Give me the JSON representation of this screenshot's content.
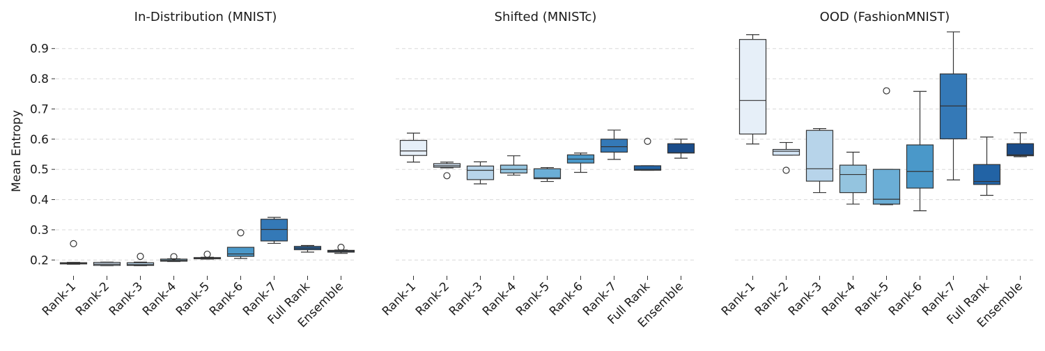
{
  "figure": {
    "ylabel": "Mean Entropy",
    "categories": [
      "Rank-1",
      "Rank-2",
      "Rank-3",
      "Rank-4",
      "Rank-5",
      "Rank-6",
      "Rank-7",
      "Full Rank",
      "Ensemble"
    ],
    "palette": [
      "#e6eff8",
      "#d2e3f3",
      "#b7d4ea",
      "#94c4df",
      "#6baed6",
      "#4a98c9",
      "#3479b7",
      "#2263a5",
      "#1a4c8a"
    ]
  },
  "chart_data": [
    {
      "type": "box",
      "title": "In-Distribution (MNIST)",
      "xlabel": "",
      "ylabel": "Mean Entropy",
      "ylim": [
        0.15,
        0.95
      ],
      "yticks": [
        0.2,
        0.3,
        0.4,
        0.5,
        0.6,
        0.7,
        0.8,
        0.9
      ],
      "grid": true,
      "categories": [
        "Rank-1",
        "Rank-2",
        "Rank-3",
        "Rank-4",
        "Rank-5",
        "Rank-6",
        "Rank-7",
        "Full Rank",
        "Ensemble"
      ],
      "boxes": [
        {
          "whislo": 0.186,
          "q1": 0.187,
          "med": 0.189,
          "q3": 0.191,
          "whishi": 0.192,
          "fliers": [
            0.254
          ]
        },
        {
          "whislo": 0.181,
          "q1": 0.182,
          "med": 0.186,
          "q3": 0.192,
          "whishi": 0.193,
          "fliers": []
        },
        {
          "whislo": 0.181,
          "q1": 0.182,
          "med": 0.185,
          "q3": 0.191,
          "whishi": 0.193,
          "fliers": [
            0.212
          ]
        },
        {
          "whislo": 0.195,
          "q1": 0.196,
          "med": 0.199,
          "q3": 0.203,
          "whishi": 0.204,
          "fliers": [
            0.211
          ]
        },
        {
          "whislo": 0.203,
          "q1": 0.204,
          "med": 0.206,
          "q3": 0.208,
          "whishi": 0.209,
          "fliers": [
            0.219
          ]
        },
        {
          "whislo": 0.205,
          "q1": 0.212,
          "med": 0.22,
          "q3": 0.242,
          "whishi": 0.242,
          "fliers": [
            0.29
          ]
        },
        {
          "whislo": 0.255,
          "q1": 0.263,
          "med": 0.301,
          "q3": 0.335,
          "whishi": 0.341,
          "fliers": []
        },
        {
          "whislo": 0.226,
          "q1": 0.234,
          "med": 0.239,
          "q3": 0.245,
          "whishi": 0.248,
          "fliers": []
        },
        {
          "whislo": 0.222,
          "q1": 0.226,
          "med": 0.229,
          "q3": 0.232,
          "whishi": 0.233,
          "fliers": [
            0.242
          ]
        }
      ]
    },
    {
      "type": "box",
      "title": "Shifted (MNISTc)",
      "xlabel": "",
      "ylabel": "",
      "ylim": [
        0.15,
        0.95
      ],
      "yticks": [
        0.2,
        0.3,
        0.4,
        0.5,
        0.6,
        0.7,
        0.8,
        0.9
      ],
      "grid": true,
      "categories": [
        "Rank-1",
        "Rank-2",
        "Rank-3",
        "Rank-4",
        "Rank-5",
        "Rank-6",
        "Rank-7",
        "Full Rank",
        "Ensemble"
      ],
      "boxes": [
        {
          "whislo": 0.524,
          "q1": 0.546,
          "med": 0.561,
          "q3": 0.596,
          "whishi": 0.62,
          "fliers": []
        },
        {
          "whislo": 0.505,
          "q1": 0.507,
          "med": 0.512,
          "q3": 0.519,
          "whishi": 0.524,
          "fliers": [
            0.479
          ]
        },
        {
          "whislo": 0.452,
          "q1": 0.466,
          "med": 0.497,
          "q3": 0.511,
          "whishi": 0.525,
          "fliers": []
        },
        {
          "whislo": 0.481,
          "q1": 0.488,
          "med": 0.5,
          "q3": 0.514,
          "whishi": 0.545,
          "fliers": []
        },
        {
          "whislo": 0.46,
          "q1": 0.469,
          "med": 0.472,
          "q3": 0.502,
          "whishi": 0.506,
          "fliers": []
        },
        {
          "whislo": 0.49,
          "q1": 0.521,
          "med": 0.534,
          "q3": 0.548,
          "whishi": 0.554,
          "fliers": []
        },
        {
          "whislo": 0.533,
          "q1": 0.557,
          "med": 0.575,
          "q3": 0.6,
          "whishi": 0.63,
          "fliers": []
        },
        {
          "whislo": 0.497,
          "q1": 0.497,
          "med": 0.5,
          "q3": 0.512,
          "whishi": 0.512,
          "fliers": [
            0.593
          ]
        },
        {
          "whislo": 0.537,
          "q1": 0.554,
          "med": 0.555,
          "q3": 0.585,
          "whishi": 0.6,
          "fliers": []
        }
      ]
    },
    {
      "type": "box",
      "title": "OOD (FashionMNIST)",
      "xlabel": "",
      "ylabel": "",
      "ylim": [
        0.15,
        0.95
      ],
      "yticks": [
        0.2,
        0.3,
        0.4,
        0.5,
        0.6,
        0.7,
        0.8,
        0.9
      ],
      "grid": true,
      "categories": [
        "Rank-1",
        "Rank-2",
        "Rank-3",
        "Rank-4",
        "Rank-5",
        "Rank-6",
        "Rank-7",
        "Full Rank",
        "Ensemble"
      ],
      "boxes": [
        {
          "whislo": 0.584,
          "q1": 0.617,
          "med": 0.728,
          "q3": 0.93,
          "whishi": 0.946,
          "fliers": []
        },
        {
          "whislo": 0.547,
          "q1": 0.547,
          "med": 0.56,
          "q3": 0.566,
          "whishi": 0.589,
          "fliers": [
            0.497
          ]
        },
        {
          "whislo": 0.423,
          "q1": 0.461,
          "med": 0.502,
          "q3": 0.629,
          "whishi": 0.635,
          "fliers": []
        },
        {
          "whislo": 0.385,
          "q1": 0.423,
          "med": 0.483,
          "q3": 0.514,
          "whishi": 0.557,
          "fliers": []
        },
        {
          "whislo": 0.383,
          "q1": 0.385,
          "med": 0.401,
          "q3": 0.5,
          "whishi": 0.5,
          "fliers": [
            0.76
          ]
        },
        {
          "whislo": 0.363,
          "q1": 0.438,
          "med": 0.493,
          "q3": 0.581,
          "whishi": 0.758,
          "fliers": []
        },
        {
          "whislo": 0.465,
          "q1": 0.601,
          "med": 0.71,
          "q3": 0.816,
          "whishi": 0.955,
          "fliers": []
        },
        {
          "whislo": 0.414,
          "q1": 0.45,
          "med": 0.46,
          "q3": 0.516,
          "whishi": 0.607,
          "fliers": []
        },
        {
          "whislo": 0.542,
          "q1": 0.545,
          "med": 0.548,
          "q3": 0.585,
          "whishi": 0.621,
          "fliers": []
        }
      ]
    }
  ]
}
